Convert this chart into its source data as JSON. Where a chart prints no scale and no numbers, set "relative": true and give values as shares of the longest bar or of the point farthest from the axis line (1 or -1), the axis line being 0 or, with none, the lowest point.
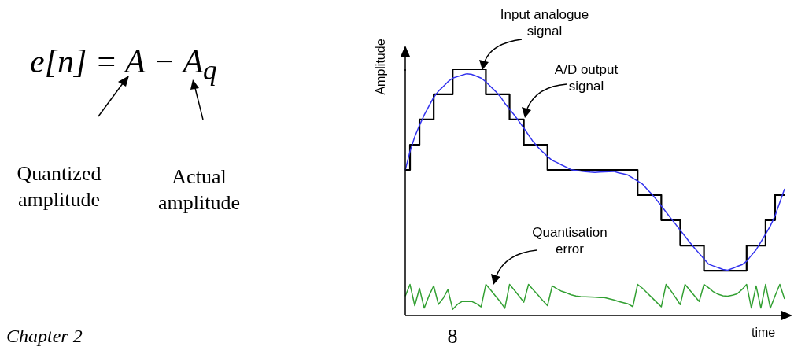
{
  "chart_data": {
    "type": "line",
    "relative": true,
    "ylabel": "Amplitude",
    "xlabel": "time",
    "marker": "none",
    "annotations": [
      "e[n] = A − A$_{q}$",
      "Quantized amplitude",
      "Actual amplitude",
      "Input analogue signal",
      "A/D output signal",
      "Quantisation error",
      "Chapter 2",
      "8"
    ],
    "categories": [
      null,
      null,
      null,
      null,
      null,
      null,
      null,
      null,
      null,
      null,
      null,
      null,
      null,
      null,
      null,
      null,
      null,
      null,
      null,
      null,
      null,
      null,
      null,
      null,
      null,
      null,
      null,
      null,
      null,
      null,
      null,
      null,
      null,
      null,
      null,
      null,
      null,
      null,
      null,
      null,
      null,
      null,
      null,
      null,
      null,
      null,
      null,
      null,
      null,
      null,
      null,
      null,
      null,
      null,
      null,
      null,
      null,
      null,
      null,
      null,
      null,
      null,
      null,
      null,
      null,
      null,
      null,
      null,
      null,
      null,
      null,
      null,
      null,
      null,
      null,
      null,
      null,
      null,
      null,
      null,
      null
    ],
    "series": [
      {
        "type": "step",
        "color": "#000000",
        "values": [
          0.591,
          0.693,
          0.693,
          0.796,
          0.796,
          0.796,
          0.898,
          0.898,
          0.898,
          0.898,
          1,
          1,
          1,
          1,
          1,
          1,
          1,
          0.898,
          0.898,
          0.898,
          0.898,
          0.898,
          0.796,
          0.796,
          0.796,
          0.693,
          0.693,
          0.693,
          0.693,
          0.693,
          0.591,
          0.591,
          0.591,
          0.591,
          0.591,
          0.591,
          0.591,
          0.591,
          0.591,
          0.591,
          0.591,
          0.591,
          0.591,
          0.591,
          0.591,
          0.591,
          0.591,
          0.591,
          0.591,
          0.489,
          0.489,
          0.489,
          0.489,
          0.489,
          0.387,
          0.387,
          0.387,
          0.387,
          0.284,
          0.284,
          0.284,
          0.284,
          0.284,
          0.182,
          0.182,
          0.182,
          0.182,
          0.182,
          0.182,
          0.182,
          0.182,
          0.182,
          0.284,
          0.284,
          0.284,
          0.284,
          0.387,
          0.387,
          0.489,
          0.489,
          0.489
        ]
      },
      {
        "color": "#3333ee",
        "values": [
          0.59,
          0.666,
          0.726,
          0.772,
          0.814,
          0.85,
          0.886,
          0.911,
          0.93,
          0.949,
          0.964,
          0.97,
          0.976,
          0.982,
          0.979,
          0.972,
          0.964,
          0.949,
          0.93,
          0.911,
          0.89,
          0.862,
          0.838,
          0.814,
          0.788,
          0.761,
          0.733,
          0.705,
          0.683,
          0.664,
          0.646,
          0.63,
          0.621,
          0.611,
          0.602,
          0.592,
          0.589,
          0.586,
          0.584,
          0.582,
          0.581,
          0.582,
          0.583,
          0.584,
          0.585,
          0.579,
          0.575,
          0.57,
          0.558,
          0.546,
          0.534,
          0.513,
          0.493,
          0.47,
          0.445,
          0.42,
          0.395,
          0.371,
          0.346,
          0.322,
          0.297,
          0.274,
          0.252,
          0.23,
          0.208,
          0.201,
          0.194,
          0.187,
          0.184,
          0.191,
          0.199,
          0.206,
          0.22,
          0.244,
          0.267,
          0.298,
          0.33,
          0.364,
          0.405,
          0.459,
          0.514
        ]
      },
      {
        "color": "#33a033",
        "values": [
          0.078,
          0.126,
          0.04,
          0.11,
          0.03,
          0.08,
          0.12,
          0.045,
          0.07,
          0.105,
          0.025,
          0.045,
          0.057,
          0.057,
          0.057,
          0.048,
          0.035,
          0.126,
          0.104,
          0.08,
          0.057,
          0.029,
          0.126,
          0.103,
          0.079,
          0.054,
          0.126,
          0.104,
          0.083,
          0.061,
          0.04,
          0.12,
          0.108,
          0.098,
          0.092,
          0.084,
          0.079,
          0.077,
          0.076,
          0.075,
          0.074,
          0.073,
          0.073,
          0.068,
          0.063,
          0.057,
          0.052,
          0.047,
          0.036,
          0.126,
          0.111,
          0.092,
          0.073,
          0.054,
          0.035,
          0.126,
          0.101,
          0.073,
          0.044,
          0.126,
          0.103,
          0.08,
          0.057,
          0.126,
          0.112,
          0.096,
          0.086,
          0.08,
          0.078,
          0.082,
          0.088,
          0.105,
          0.126,
          0.03,
          0.12,
          0.03,
          0.126,
          0.03,
          0.08,
          0.126,
          0.067
        ]
      }
    ]
  }
}
